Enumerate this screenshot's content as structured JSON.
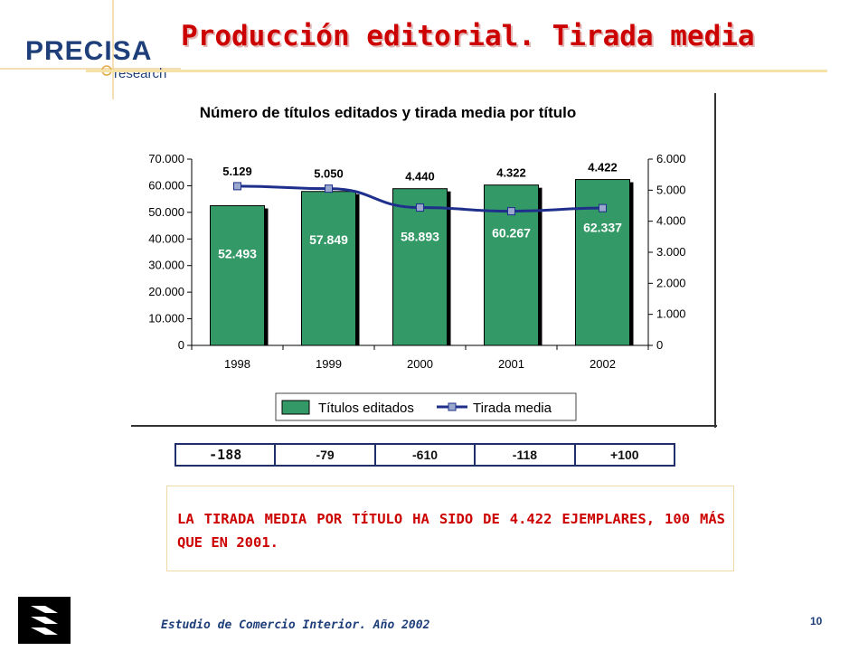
{
  "brand": {
    "name": "PRECISA",
    "sub": "research"
  },
  "slide": {
    "title": "Producción editorial. Tirada media",
    "page_number": "10",
    "footer": "Estudio de Comercio Interior. Año 2002"
  },
  "chart_data": {
    "type": "bar",
    "title": "Número de títulos editados y tirada media por título",
    "categories": [
      "1998",
      "1999",
      "2000",
      "2001",
      "2002"
    ],
    "series": [
      {
        "name": "Títulos editados",
        "type": "bar",
        "axis": "left",
        "values": [
          52493,
          57849,
          58893,
          60267,
          62337
        ],
        "labels": [
          "52.493",
          "57.849",
          "58.893",
          "60.267",
          "62.337"
        ]
      },
      {
        "name": "Tirada media",
        "type": "line",
        "axis": "right",
        "values": [
          5129,
          5050,
          4440,
          4322,
          4422
        ],
        "labels": [
          "5.129",
          "5.050",
          "4.440",
          "4.322",
          "4.422"
        ]
      }
    ],
    "y_left": {
      "min": 0,
      "max": 70000,
      "ticks": [
        "0",
        "10.000",
        "20.000",
        "30.000",
        "40.000",
        "50.000",
        "60.000",
        "70.000"
      ]
    },
    "y_right": {
      "min": 0,
      "max": 6000,
      "ticks": [
        "0",
        "1.000",
        "2.000",
        "3.000",
        "4.000",
        "5.000",
        "6.000"
      ]
    },
    "legend_position": "bottom",
    "colors": {
      "bar": "#339966",
      "line": "#1f2f8c",
      "marker": "#99a8cc"
    }
  },
  "differences": [
    "-188",
    "-79",
    "-610",
    "-118",
    "+100"
  ],
  "note": "LA TIRADA MEDIA POR TÍTULO HA SIDO DE 4.422 EJEMPLARES,  100 MÁS QUE EN 2001."
}
